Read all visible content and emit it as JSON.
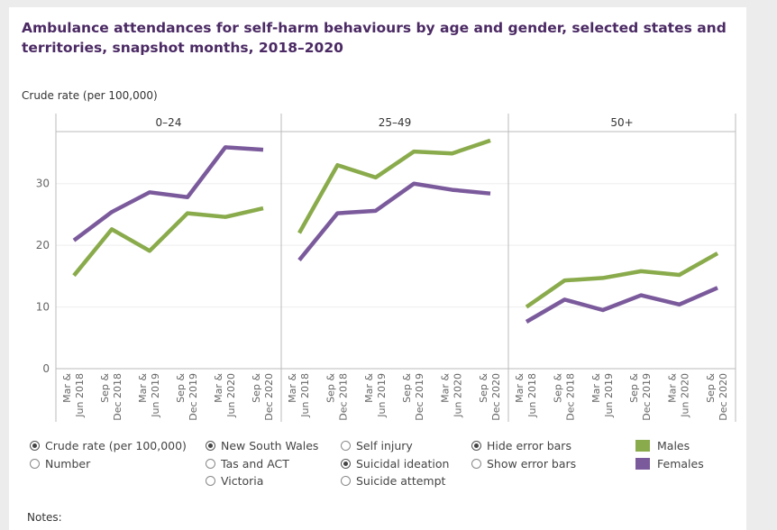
{
  "title": "Ambulance attendances for self-harm behaviours by age and gender, selected states and territories, snapshot months, 2018–2020",
  "notes_label": "Notes:",
  "colors": {
    "males": "#8aab4b",
    "females": "#7b5a9c"
  },
  "chart_data": {
    "type": "line",
    "ylabel": "Crude rate (per 100,000)",
    "ylim": [
      0,
      38
    ],
    "yticks": [
      0,
      10,
      20,
      30
    ],
    "grid": true,
    "categories": [
      "Mar & Jun 2018",
      "Sep & Dec 2018",
      "Mar & Jun 2019",
      "Sep & Dec 2019",
      "Mar & Jun 2020",
      "Sep & Dec 2020"
    ],
    "panels": [
      {
        "label": "0–24",
        "series": [
          {
            "name": "Males",
            "values": [
              15.1,
              22.6,
              19.1,
              25.2,
              24.6,
              26.0
            ]
          },
          {
            "name": "Females",
            "values": [
              20.8,
              25.4,
              28.6,
              27.8,
              35.9,
              35.5
            ]
          }
        ]
      },
      {
        "label": "25–49",
        "series": [
          {
            "name": "Males",
            "values": [
              22.0,
              33.0,
              31.0,
              35.2,
              34.9,
              37.0
            ]
          },
          {
            "name": "Females",
            "values": [
              17.6,
              25.2,
              25.6,
              30.0,
              29.0,
              28.4
            ]
          }
        ]
      },
      {
        "label": "50+",
        "series": [
          {
            "name": "Males",
            "values": [
              10.0,
              14.3,
              14.7,
              15.8,
              15.2,
              18.7
            ]
          },
          {
            "name": "Females",
            "values": [
              7.6,
              11.2,
              9.5,
              11.9,
              10.4,
              13.1
            ]
          }
        ]
      }
    ],
    "legend": [
      {
        "name": "Males",
        "color": "#8aab4b"
      },
      {
        "name": "Females",
        "color": "#7b5a9c"
      }
    ]
  },
  "controls": {
    "measure": [
      {
        "label": "Crude rate (per 100,000)",
        "selected": true
      },
      {
        "label": "Number",
        "selected": false
      }
    ],
    "state": [
      {
        "label": "New South Wales",
        "selected": true
      },
      {
        "label": "Tas and ACT",
        "selected": false
      },
      {
        "label": "Victoria",
        "selected": false
      }
    ],
    "behaviour": [
      {
        "label": "Self injury",
        "selected": false
      },
      {
        "label": "Suicidal ideation",
        "selected": true
      },
      {
        "label": "Suicide attempt",
        "selected": false
      }
    ],
    "error_bars": [
      {
        "label": "Hide error bars",
        "selected": true
      },
      {
        "label": "Show error bars",
        "selected": false
      }
    ]
  }
}
